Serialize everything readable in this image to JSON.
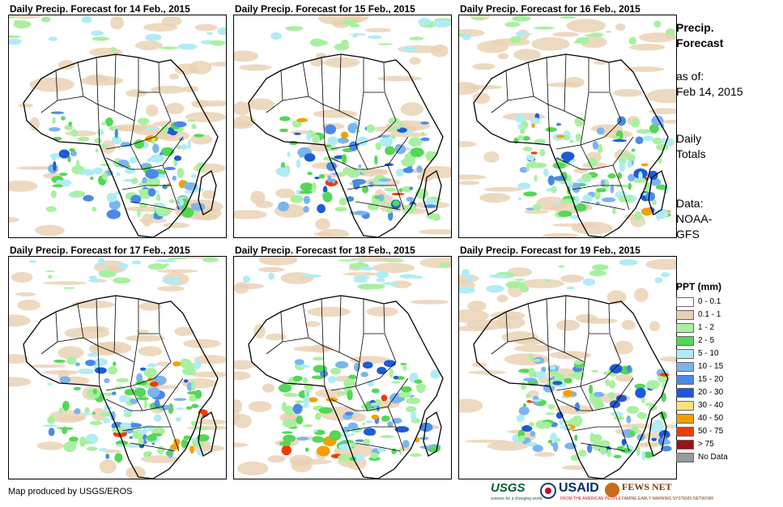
{
  "panels": [
    {
      "title": "Daily Precip. Forecast for 14 Feb., 2015"
    },
    {
      "title": "Daily Precip. Forecast for 15 Feb., 2015"
    },
    {
      "title": "Daily Precip. Forecast for 16 Feb., 2015"
    },
    {
      "title": "Daily Precip. Forecast for 17 Feb., 2015"
    },
    {
      "title": "Daily Precip. Forecast for 18 Feb., 2015"
    },
    {
      "title": "Daily Precip. Forecast for 19 Feb., 2015"
    }
  ],
  "sidebar": {
    "title_line1": "Precip.",
    "title_line2": "Forecast",
    "asof_label": "as of:",
    "asof_date": "Feb 14, 2015",
    "daily_line1": "Daily",
    "daily_line2": "Totals",
    "data_line1": "Data:",
    "data_line2": "NOAA-",
    "data_line3": "GFS"
  },
  "legend": {
    "title": "PPT (mm)",
    "items": [
      {
        "label": "0 - 0.1",
        "color": "#ffffff"
      },
      {
        "label": "0.1 - 1",
        "color": "#e8d0b0"
      },
      {
        "label": "1 - 2",
        "color": "#a8f0a0"
      },
      {
        "label": "2 - 5",
        "color": "#56d656"
      },
      {
        "label": "5 - 10",
        "color": "#b0ecf5"
      },
      {
        "label": "10 - 15",
        "color": "#7cb4ee"
      },
      {
        "label": "15 - 20",
        "color": "#4a8ae6"
      },
      {
        "label": "20 - 30",
        "color": "#1e5ad8"
      },
      {
        "label": "30 - 40",
        "color": "#fbe27a"
      },
      {
        "label": "40 - 50",
        "color": "#f5a000"
      },
      {
        "label": "50 - 75",
        "color": "#f03c00"
      },
      {
        "label": "> 75",
        "color": "#a01010"
      },
      {
        "label": "No Data",
        "color": "#9a9a9a"
      }
    ]
  },
  "footer": {
    "credit": "Map produced by USGS/EROS",
    "usgs": "USGS",
    "usgs_tagline": "science for a changing world",
    "usaid": "USAID",
    "usaid_tagline": "FROM THE AMERICAN PEOPLE",
    "fews": "FEWS NET",
    "fews_tagline": "FAMINE EARLY WARNING SYSTEMS NETWORK"
  }
}
